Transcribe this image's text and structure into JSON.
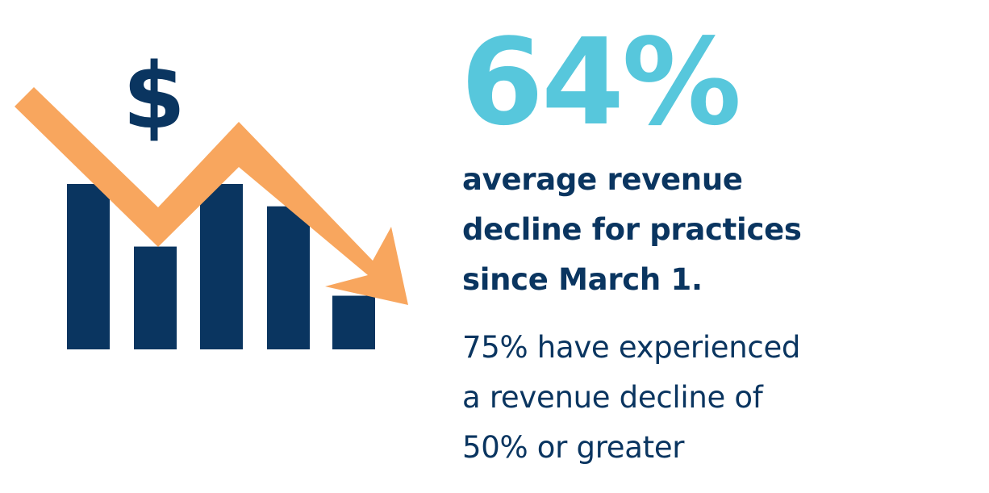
{
  "colors": {
    "accent_value": "#57C7DC",
    "navy": "#0A3560",
    "arrow": "#F8A65E",
    "background": "#FFFFFF"
  },
  "illustration": {
    "icon": "dollar-sign-icon",
    "symbol": "$",
    "arrow_icon": "down-trend-arrow-icon",
    "bar_heights": [
      0.74,
      0.46,
      0.74,
      0.64,
      0.24
    ]
  },
  "stat": {
    "value": "64%",
    "caption_lines": [
      "average revenue",
      "decline for practices",
      "since March 1."
    ],
    "detail_lines": [
      "75% have experienced",
      "a revenue decline of",
      "50% or greater"
    ]
  }
}
